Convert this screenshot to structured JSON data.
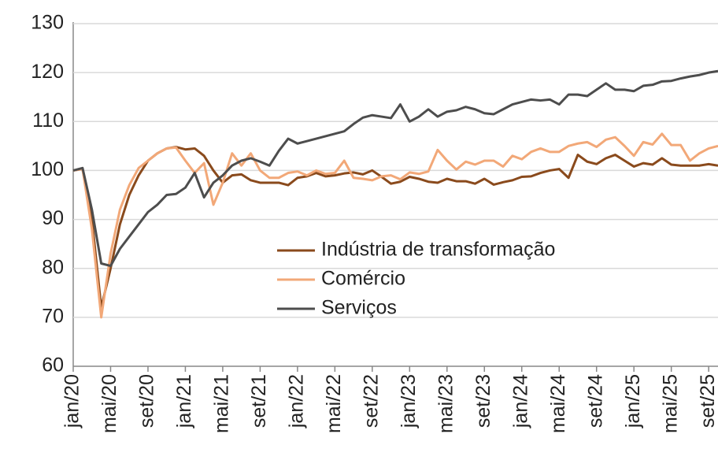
{
  "chart_data": {
    "type": "line",
    "categories": [
      "jan/20",
      null,
      null,
      null,
      "mai/20",
      null,
      null,
      null,
      "set/20",
      null,
      null,
      null,
      "jan/21",
      null,
      null,
      null,
      "mai/21",
      null,
      null,
      null,
      "set/21",
      null,
      null,
      null,
      "jan/22",
      null,
      null,
      null,
      "mai/22",
      null,
      null,
      null,
      "set/22",
      null,
      null,
      null,
      "jan/23",
      null,
      null,
      null,
      "mai/23",
      null,
      null,
      null,
      "set/23",
      null,
      null,
      null,
      "jan/24",
      null,
      null,
      null,
      "mai/24",
      null,
      null,
      null,
      "set/24",
      null,
      null,
      null,
      "jan/25",
      null,
      null,
      null,
      "mai/25",
      null,
      null,
      null,
      "set/25",
      null
    ],
    "series": [
      {
        "name": "Indústria de transformação",
        "color": "#8a4a1c",
        "values": [
          100,
          100.3,
          90,
          72,
          80,
          89,
          95,
          99,
          102,
          103.5,
          104.5,
          104.8,
          104.3,
          104.5,
          103,
          100,
          97.5,
          99,
          99.2,
          98,
          97.5,
          97.5,
          97.5,
          97,
          98.5,
          98.8,
          99.5,
          98.8,
          99,
          99.4,
          99.6,
          99.2,
          100,
          98.7,
          97.3,
          97.7,
          98.7,
          98.3,
          97.7,
          97.5,
          98.3,
          97.8,
          97.8,
          97.3,
          98.3,
          97.1,
          97.6,
          98,
          98.7,
          98.8,
          99.5,
          100,
          100.3,
          98.5,
          103.2,
          101.8,
          101.3,
          102.5,
          103.2,
          102,
          100.8,
          101.5,
          101.2,
          102.5,
          101.2,
          101,
          101,
          101,
          101.3,
          101
        ]
      },
      {
        "name": "Comércio",
        "color": "#f2a878",
        "values": [
          100,
          100.3,
          88,
          70,
          83,
          92,
          97,
          100.5,
          102,
          103.5,
          104.5,
          104.7,
          102,
          99.5,
          101.5,
          93,
          97.5,
          103.5,
          101,
          103.5,
          100,
          98.5,
          98.5,
          99.5,
          99.8,
          99,
          100,
          99.3,
          99.5,
          102,
          98.5,
          98.3,
          98,
          98.8,
          99,
          98.2,
          99.6,
          99.3,
          99.8,
          104.2,
          102,
          100.2,
          101.8,
          101.2,
          102,
          102,
          100.8,
          103,
          102.3,
          103.8,
          104.5,
          103.8,
          103.8,
          105,
          105.5,
          105.8,
          104.8,
          106.3,
          106.8,
          105,
          103,
          105.8,
          105.3,
          107.5,
          105.2,
          105.2,
          102,
          103.5,
          104.5,
          105
        ]
      },
      {
        "name": "Serviços",
        "color": "#4d4d4d",
        "values": [
          100,
          100.5,
          92,
          81,
          80.5,
          84,
          86.5,
          89,
          91.5,
          93,
          95,
          95.2,
          96.5,
          99.5,
          94.5,
          97.5,
          99,
          101,
          102,
          102.5,
          101.8,
          101,
          104,
          106.5,
          105.5,
          106,
          106.5,
          107,
          107.5,
          108,
          109.5,
          110.8,
          111.3,
          111,
          110.7,
          113.5,
          110,
          111,
          112.5,
          111,
          112,
          112.3,
          113,
          112.5,
          111.7,
          111.5,
          112.5,
          113.5,
          114,
          114.5,
          114.3,
          114.5,
          113.5,
          115.5,
          115.5,
          115.2,
          116.5,
          117.8,
          116.5,
          116.5,
          116.2,
          117.3,
          117.5,
          118.2,
          118.3,
          118.8,
          119.2,
          119.5,
          120,
          120.3
        ]
      }
    ],
    "ylim": [
      60,
      130
    ],
    "yticks": [
      60,
      70,
      80,
      90,
      100,
      110,
      120,
      130
    ],
    "grid": true
  }
}
